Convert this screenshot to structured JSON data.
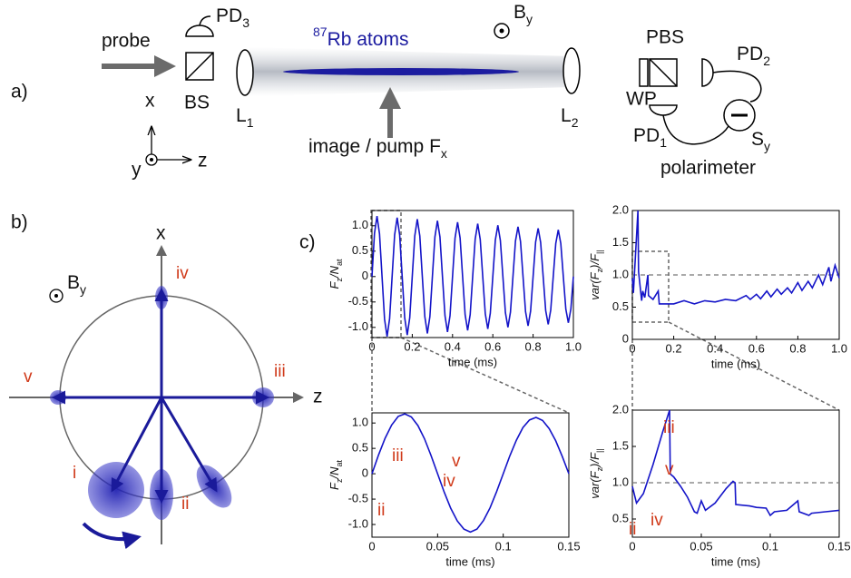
{
  "panel_a": {
    "label": "a)",
    "probe": "probe",
    "pd3": {
      "base": "PD",
      "sub": "3"
    },
    "bs": "BS",
    "l1": {
      "base": "L",
      "sub": "1"
    },
    "atoms": {
      "sup": "87",
      "base": "Rb atoms"
    },
    "by": {
      "base": "B",
      "sub": "y"
    },
    "l2": {
      "base": "L",
      "sub": "2"
    },
    "pbs": "PBS",
    "pd2": {
      "base": "PD",
      "sub": "2"
    },
    "wp": "WP",
    "pd1": {
      "base": "PD",
      "sub": "1"
    },
    "sy": {
      "base": "S",
      "sub": "y"
    },
    "polarimeter": "polarimeter",
    "pump": {
      "base": "image / pump F",
      "sub": "x"
    },
    "axis_x": "x",
    "axis_y": "y",
    "axis_z": "z"
  },
  "panel_b": {
    "label": "b)",
    "axis_x": "x",
    "axis_z": "z",
    "by": {
      "base": "B",
      "sub": "y"
    },
    "states": [
      "i",
      "ii",
      "iii",
      "iv",
      "v"
    ]
  },
  "panel_c": {
    "label": "c)"
  },
  "chart_data": [
    {
      "type": "line",
      "xlabel": "time (ms)",
      "ylabel": [
        "F",
        "z",
        "/N",
        "at"
      ],
      "color": "#1414c8",
      "x": [
        0,
        0.0125,
        0.025,
        0.0375,
        0.05,
        0.0625,
        0.075,
        0.0875,
        0.1,
        0.1125,
        0.125,
        0.1375,
        0.15,
        0.1625,
        0.175,
        0.1875,
        0.2,
        0.2125,
        0.225,
        0.2375,
        0.25,
        0.2625,
        0.275,
        0.2875,
        0.3,
        0.3125,
        0.325,
        0.3375,
        0.35,
        0.3625,
        0.375,
        0.3875,
        0.4,
        0.4125,
        0.425,
        0.4375,
        0.45,
        0.4625,
        0.475,
        0.4875,
        0.5,
        0.5125,
        0.525,
        0.5375,
        0.55,
        0.5625,
        0.575,
        0.5875,
        0.6,
        0.6125,
        0.625,
        0.6375,
        0.65,
        0.6625,
        0.675,
        0.6875,
        0.7,
        0.7125,
        0.725,
        0.7375,
        0.75,
        0.7625,
        0.775,
        0.7875,
        0.8,
        0.8125,
        0.825,
        0.8375,
        0.85,
        0.8625,
        0.875,
        0.8875,
        0.9,
        0.9125,
        0.925,
        0.9375,
        0.95,
        0.9625,
        0.975,
        0.9875,
        1.0
      ],
      "values": [
        0,
        0.85,
        1.19,
        0.84,
        0,
        -0.84,
        -1.18,
        -0.83,
        0,
        0.82,
        1.16,
        0.82,
        0,
        -0.81,
        -1.15,
        -0.81,
        0,
        0.8,
        1.13,
        0.8,
        0,
        -0.79,
        -1.12,
        -0.79,
        0,
        0.78,
        1.1,
        0.78,
        0,
        -0.77,
        -1.09,
        -0.77,
        0,
        0.76,
        1.07,
        0.76,
        0,
        -0.75,
        -1.06,
        -0.75,
        0,
        0.74,
        1.04,
        0.73,
        0,
        -0.73,
        -1.03,
        -0.72,
        0,
        0.72,
        1.01,
        0.71,
        0,
        -0.71,
        -1.0,
        -0.7,
        0,
        0.7,
        0.98,
        0.69,
        0,
        -0.69,
        -0.97,
        -0.68,
        0,
        0.68,
        0.95,
        0.67,
        0,
        -0.67,
        -0.94,
        -0.66,
        0,
        0.65,
        0.92,
        0.65,
        0,
        -0.64,
        -0.91,
        -0.64,
        0
      ],
      "xlim": [
        0,
        1.0
      ],
      "ylim": [
        -1.2,
        1.3
      ],
      "xticks": [
        0,
        0.2,
        0.4,
        0.6,
        0.8,
        {
          "value": 1,
          "label": "1.0"
        }
      ],
      "yticks": [
        {
          "value": -1,
          "label": "-1.0"
        },
        -0.5,
        0,
        0.5,
        {
          "value": 1,
          "label": "1.0"
        }
      ]
    },
    {
      "type": "line",
      "xlabel": "time (ms)",
      "ylabel": [
        "var(F",
        "z",
        ")/F",
        "||"
      ],
      "color": "#1414c8",
      "hline": 1,
      "x": [
        0,
        0.005,
        0.027,
        0.03,
        0.045,
        0.05,
        0.06,
        0.075,
        0.078,
        0.1,
        0.125,
        0.13,
        0.2,
        0.25,
        0.3,
        0.35,
        0.4,
        0.45,
        0.5,
        0.55,
        0.57,
        0.6,
        0.62,
        0.65,
        0.67,
        0.7,
        0.72,
        0.75,
        0.77,
        0.8,
        0.82,
        0.85,
        0.87,
        0.9,
        0.92,
        0.95,
        0.96,
        0.98,
        1.0
      ],
      "values": [
        0.95,
        0.72,
        2.0,
        1.05,
        0.6,
        0.75,
        0.65,
        1.0,
        0.68,
        0.62,
        0.75,
        0.55,
        0.55,
        0.6,
        0.55,
        0.6,
        0.58,
        0.62,
        0.6,
        0.68,
        0.62,
        0.7,
        0.63,
        0.75,
        0.66,
        0.78,
        0.7,
        0.8,
        0.72,
        0.88,
        0.76,
        0.9,
        0.8,
        1.0,
        0.85,
        1.12,
        0.9,
        1.15,
        0.95
      ],
      "xlim": [
        0,
        1.0
      ],
      "ylim": [
        0,
        2.0
      ],
      "xticks": [
        0,
        0.2,
        0.4,
        0.6,
        0.8,
        {
          "value": 1,
          "label": "1.0"
        }
      ],
      "yticks": [
        0,
        0.5,
        {
          "value": 1,
          "label": "1.0"
        },
        1.5,
        {
          "value": 2,
          "label": "2.0"
        }
      ]
    },
    {
      "type": "line",
      "xlabel": "time (ms)",
      "ylabel": [
        "F",
        "z",
        "/N",
        "at"
      ],
      "color": "#1414c8",
      "x": [
        0,
        0.005,
        0.01,
        0.015,
        0.02,
        0.025,
        0.03,
        0.035,
        0.04,
        0.045,
        0.05,
        0.055,
        0.06,
        0.065,
        0.07,
        0.075,
        0.08,
        0.085,
        0.09,
        0.095,
        0.1,
        0.105,
        0.11,
        0.115,
        0.12,
        0.125,
        0.13,
        0.135,
        0.14,
        0.145,
        0.15
      ],
      "values": [
        0,
        0.37,
        0.7,
        0.96,
        1.13,
        1.18,
        1.12,
        0.95,
        0.69,
        0.36,
        0,
        -0.36,
        -0.68,
        -0.93,
        -1.09,
        -1.15,
        -1.09,
        -0.92,
        -0.67,
        -0.35,
        0,
        0.35,
        0.66,
        0.91,
        1.06,
        1.11,
        1.05,
        0.89,
        0.65,
        0.34,
        0
      ],
      "xlim": [
        0,
        0.15
      ],
      "ylim": [
        -1.25,
        1.2
      ],
      "xticks": [
        0,
        0.05,
        0.1,
        0.15
      ],
      "yticks": [
        {
          "value": -1,
          "label": "-1.0"
        },
        -0.5,
        0,
        0.5,
        {
          "value": 1,
          "label": "1.0"
        }
      ],
      "annotations": [
        "ii",
        "iii",
        "iv",
        "v"
      ]
    },
    {
      "type": "line",
      "xlabel": "time (ms)",
      "ylabel": [
        "var(F",
        "z",
        ")/F",
        "||"
      ],
      "color": "#1414c8",
      "hline": 1,
      "x": [
        0,
        0.003,
        0.008,
        0.015,
        0.022,
        0.027,
        0.0275,
        0.03,
        0.035,
        0.04,
        0.045,
        0.047,
        0.05,
        0.053,
        0.06,
        0.068,
        0.073,
        0.0745,
        0.075,
        0.085,
        0.09,
        0.097,
        0.1,
        0.103,
        0.112,
        0.12,
        0.121,
        0.128,
        0.13,
        0.14,
        0.15
      ],
      "values": [
        0.95,
        0.72,
        0.85,
        1.25,
        1.7,
        2.0,
        1.12,
        1.08,
        0.95,
        0.8,
        0.6,
        0.58,
        0.75,
        0.62,
        0.72,
        0.92,
        1.02,
        1.0,
        0.7,
        0.68,
        0.66,
        0.65,
        0.55,
        0.6,
        0.62,
        0.75,
        0.6,
        0.55,
        0.58,
        0.6,
        0.62
      ],
      "xlim": [
        0,
        0.15
      ],
      "ylim": [
        0.25,
        2.0
      ],
      "xticks": [
        0,
        0.05,
        0.1,
        0.15
      ],
      "yticks": [
        0.5,
        {
          "value": 1,
          "label": "1.0"
        },
        1.5,
        {
          "value": 2,
          "label": "2.0"
        }
      ],
      "annotations": [
        "ii",
        "iii",
        "iv",
        "v"
      ]
    }
  ]
}
